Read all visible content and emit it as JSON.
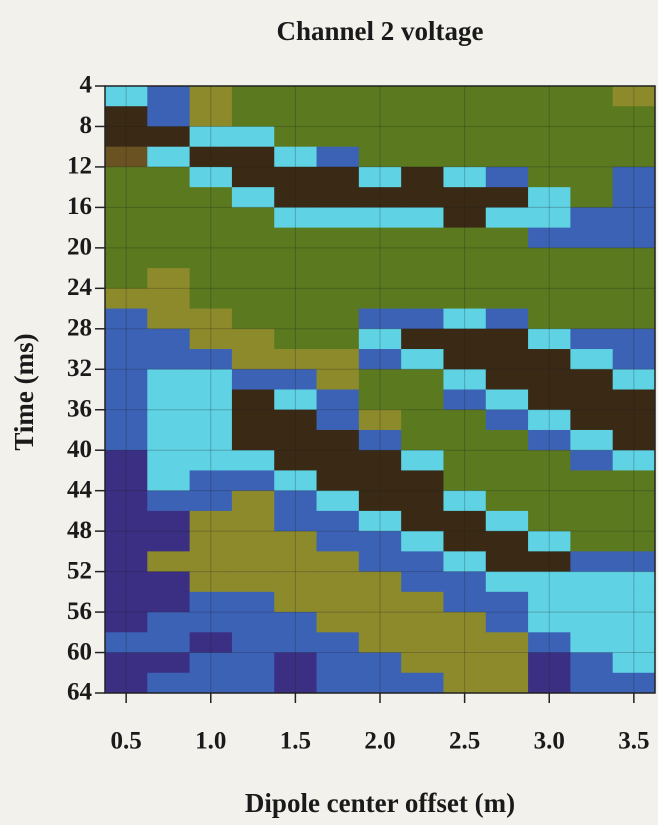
{
  "chart_data": {
    "type": "heatmap",
    "title": "Channel 2 voltage",
    "xlabel": "Dipole center offset (m)",
    "ylabel": "Time (ms)",
    "x": [
      0.5,
      0.75,
      1.0,
      1.25,
      1.5,
      1.75,
      2.0,
      2.25,
      2.5,
      2.75,
      3.0,
      3.25,
      3.5
    ],
    "ybins": [
      4,
      6,
      8,
      10,
      12,
      14,
      16,
      18,
      20,
      22,
      24,
      26,
      28,
      30,
      32,
      34,
      36,
      38,
      40,
      42,
      44,
      46,
      48,
      50,
      52,
      54,
      56,
      58,
      60,
      62,
      64
    ],
    "xlim": [
      0.375,
      3.625
    ],
    "ylim": [
      4,
      64
    ],
    "y_inverted": true,
    "xticks": [
      0.5,
      {
        "value": 1,
        "label": "1.0"
      },
      1.5,
      {
        "value": 2,
        "label": "2.0"
      },
      2.5,
      {
        "value": 3,
        "label": "3.0"
      },
      3.5
    ],
    "yticks": [
      4,
      8,
      12,
      16,
      20,
      24,
      28,
      32,
      36,
      40,
      44,
      48,
      52,
      56,
      60,
      64
    ],
    "colorscale": [
      [
        -3,
        "#3b2f84"
      ],
      [
        -2,
        "#3c62b6"
      ],
      [
        -1,
        "#5fd3e4"
      ],
      [
        0,
        "#5b7a20"
      ],
      [
        1,
        "#8d8a2c"
      ],
      [
        2,
        "#6b5222"
      ],
      [
        3,
        "#3a2a15"
      ]
    ],
    "z": [
      [
        -1,
        -2,
        1,
        0,
        0,
        0,
        0,
        0,
        0,
        0,
        0,
        0,
        1
      ],
      [
        3,
        -2,
        1,
        0,
        0,
        0,
        0,
        0,
        0,
        0,
        0,
        0,
        0
      ],
      [
        3,
        3,
        -1,
        -1,
        0,
        0,
        0,
        0,
        0,
        0,
        0,
        0,
        0
      ],
      [
        2,
        -1,
        3,
        3,
        -1,
        -2,
        0,
        0,
        0,
        0,
        0,
        0,
        0
      ],
      [
        0,
        0,
        -1,
        3,
        3,
        3,
        -1,
        3,
        -1,
        -2,
        0,
        0,
        -2
      ],
      [
        0,
        0,
        0,
        -1,
        3,
        3,
        3,
        3,
        3,
        3,
        -1,
        0,
        -2
      ],
      [
        0,
        0,
        0,
        0,
        -1,
        -1,
        -1,
        -1,
        3,
        -1,
        -1,
        -2,
        -2
      ],
      [
        0,
        0,
        0,
        0,
        0,
        0,
        0,
        0,
        0,
        0,
        -2,
        -2,
        -2
      ],
      [
        0,
        0,
        0,
        0,
        0,
        0,
        0,
        0,
        0,
        0,
        0,
        0,
        0
      ],
      [
        0,
        1,
        0,
        0,
        0,
        0,
        0,
        0,
        0,
        0,
        0,
        0,
        0
      ],
      [
        1,
        1,
        0,
        0,
        0,
        0,
        0,
        0,
        0,
        0,
        0,
        0,
        0
      ],
      [
        -2,
        1,
        1,
        0,
        0,
        0,
        -2,
        -2,
        -1,
        -2,
        0,
        0,
        0
      ],
      [
        -2,
        -2,
        1,
        1,
        0,
        0,
        -1,
        3,
        3,
        3,
        -1,
        -2,
        -2
      ],
      [
        -2,
        -2,
        -2,
        1,
        1,
        1,
        -2,
        -1,
        3,
        3,
        3,
        -1,
        -2
      ],
      [
        -2,
        -1,
        -1,
        -2,
        -2,
        1,
        0,
        0,
        -1,
        3,
        3,
        3,
        -1
      ],
      [
        -2,
        -1,
        -1,
        3,
        -1,
        -2,
        0,
        0,
        -2,
        -1,
        3,
        3,
        3
      ],
      [
        -2,
        -1,
        -1,
        3,
        3,
        -2,
        1,
        0,
        0,
        -2,
        -1,
        3,
        3
      ],
      [
        -2,
        -1,
        -1,
        3,
        3,
        3,
        -2,
        0,
        0,
        0,
        -2,
        -1,
        3
      ],
      [
        -3,
        -1,
        -1,
        -1,
        3,
        3,
        3,
        -1,
        0,
        0,
        0,
        -2,
        -1
      ],
      [
        -3,
        -1,
        -2,
        -2,
        -1,
        3,
        3,
        3,
        0,
        0,
        0,
        0,
        0
      ],
      [
        -3,
        -2,
        -2,
        1,
        -2,
        -1,
        3,
        3,
        -1,
        0,
        0,
        0,
        0
      ],
      [
        -3,
        -3,
        1,
        1,
        -2,
        -2,
        -1,
        3,
        3,
        -1,
        0,
        0,
        0
      ],
      [
        -3,
        -3,
        1,
        1,
        1,
        -2,
        -2,
        -1,
        3,
        3,
        -1,
        0,
        0
      ],
      [
        -3,
        1,
        1,
        1,
        1,
        1,
        -2,
        -2,
        -1,
        3,
        3,
        -2,
        -2
      ],
      [
        -3,
        -3,
        1,
        1,
        1,
        1,
        1,
        -2,
        -2,
        -1,
        -1,
        -1,
        -1
      ],
      [
        -3,
        -3,
        -2,
        -2,
        1,
        1,
        1,
        1,
        -2,
        -2,
        -1,
        -1,
        -1
      ],
      [
        -3,
        -2,
        -2,
        -2,
        -2,
        1,
        1,
        1,
        1,
        -2,
        -1,
        -1,
        -1
      ],
      [
        -2,
        -2,
        -3,
        -2,
        -2,
        -2,
        1,
        1,
        1,
        1,
        -2,
        -1,
        -1
      ],
      [
        -3,
        -3,
        -2,
        -2,
        -3,
        -2,
        -2,
        1,
        1,
        1,
        -3,
        -2,
        -1
      ],
      [
        -3,
        -2,
        -2,
        -2,
        -3,
        -2,
        -2,
        -2,
        1,
        1,
        -3,
        -2,
        -2
      ]
    ]
  }
}
